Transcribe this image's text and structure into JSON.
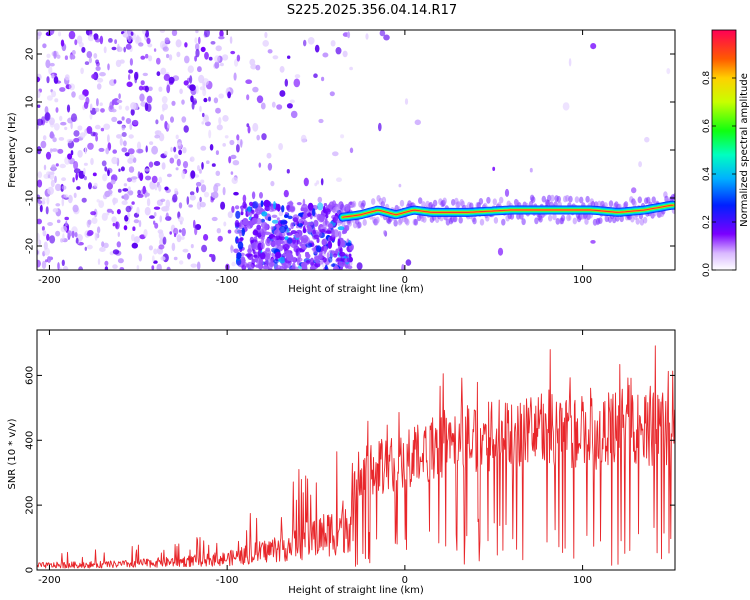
{
  "chart_data": [
    {
      "type": "heatmap",
      "title": "S225.2025.356.04.14.R17",
      "xlabel": "Height of straight line (km)",
      "ylabel": "Frequency (Hz)",
      "xlim": [
        -207,
        152
      ],
      "ylim": [
        -25,
        25
      ],
      "xticks": [
        -200,
        -100,
        0,
        100
      ],
      "yticks": [
        20,
        10,
        0,
        -10,
        -20
      ],
      "colorbar": {
        "label": "Normalized spectral amplitude",
        "range": [
          0,
          1
        ],
        "ticks": [
          "0.0",
          "0.2",
          "0.4",
          "0.6",
          "0.8"
        ]
      },
      "signal_track": [
        {
          "x": -35,
          "y": -14
        },
        {
          "x": -25,
          "y": -13.5
        },
        {
          "x": -15,
          "y": -12.5
        },
        {
          "x": -5,
          "y": -13.5
        },
        {
          "x": 5,
          "y": -12.5
        },
        {
          "x": 15,
          "y": -13
        },
        {
          "x": 35,
          "y": -13
        },
        {
          "x": 60,
          "y": -12.5
        },
        {
          "x": 90,
          "y": -12.5
        },
        {
          "x": 105,
          "y": -12.5
        },
        {
          "x": 120,
          "y": -13
        },
        {
          "x": 135,
          "y": -12.5
        },
        {
          "x": 150,
          "y": -11.5
        }
      ]
    },
    {
      "type": "line",
      "xlabel": "Height of straight line (km)",
      "ylabel": "SNR (10 * v/v)",
      "xlim": [
        -207,
        152
      ],
      "ylim": [
        0,
        740
      ],
      "xticks": [
        -200,
        -100,
        0,
        100
      ],
      "yticks": [
        0,
        200,
        400,
        600
      ],
      "series": [
        {
          "name": "SNR",
          "color": "#e8262a",
          "envelope": [
            {
              "x": -207,
              "y": 20
            },
            {
              "x": -160,
              "y": 25
            },
            {
              "x": -120,
              "y": 40
            },
            {
              "x": -100,
              "y": 50
            },
            {
              "x": -80,
              "y": 80
            },
            {
              "x": -60,
              "y": 120
            },
            {
              "x": -40,
              "y": 170
            },
            {
              "x": -30,
              "y": 220
            },
            {
              "x": -20,
              "y": 300
            },
            {
              "x": 0,
              "y": 330
            },
            {
              "x": 20,
              "y": 380
            },
            {
              "x": 40,
              "y": 400
            },
            {
              "x": 60,
              "y": 410
            },
            {
              "x": 80,
              "y": 430
            },
            {
              "x": 100,
              "y": 400
            },
            {
              "x": 120,
              "y": 430
            },
            {
              "x": 140,
              "y": 430
            },
            {
              "x": 152,
              "y": 380
            }
          ]
        }
      ]
    }
  ]
}
